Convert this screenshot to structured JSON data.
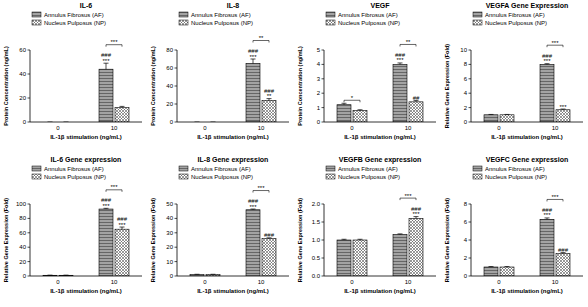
{
  "chart_data": [
    {
      "type": "bar",
      "title": "IL-6",
      "x_label": "IL-1β stimulation (ng/mL)",
      "y_label": "Protein Concentration (ng/mL)",
      "categories": [
        "0",
        "10"
      ],
      "ylim": [
        0,
        60
      ],
      "yticks": [
        0,
        20,
        40,
        60
      ],
      "legend": "top",
      "series": [
        {
          "name": "Annulus Fibrosus (AF)",
          "color": "#666666",
          "values": [
            0,
            44
          ],
          "errors": [
            0,
            5
          ],
          "annotations": [
            [],
            [
              "###",
              "***"
            ]
          ]
        },
        {
          "name": "Nucleus Pulposus (NP)",
          "color": "#555555",
          "values": [
            0,
            12
          ],
          "errors": [
            0,
            1
          ],
          "annotations": [
            [],
            []
          ]
        }
      ],
      "brackets": [
        null,
        "***"
      ]
    },
    {
      "type": "bar",
      "title": "IL-8",
      "x_label": "IL-1β stimulation (ng/mL)",
      "y_label": "Protein Concentration (ng/mL)",
      "categories": [
        "0",
        "10"
      ],
      "ylim": [
        0,
        80
      ],
      "yticks": [
        0,
        20,
        40,
        60,
        80
      ],
      "legend": "top",
      "series": [
        {
          "name": "Annulus Fibrosus (AF)",
          "color": "#666666",
          "values": [
            0,
            65
          ],
          "errors": [
            0,
            5
          ],
          "annotations": [
            [],
            [
              "###",
              "***"
            ]
          ]
        },
        {
          "name": "Nucleus Pulposus (NP)",
          "color": "#555555",
          "values": [
            0,
            24
          ],
          "errors": [
            0,
            2
          ],
          "annotations": [
            [],
            [
              "###",
              "**"
            ]
          ]
        }
      ],
      "brackets": [
        null,
        "**"
      ]
    },
    {
      "type": "bar",
      "title": "VEGF",
      "x_label": "IL-1β stimulation (ng/mL)",
      "y_label": "Protein Concentration (ng/mL)",
      "categories": [
        "0",
        "10"
      ],
      "ylim": [
        0,
        5
      ],
      "yticks": [
        0,
        1,
        2,
        3,
        4,
        5
      ],
      "legend": "top",
      "series": [
        {
          "name": "Annulus Fibrosus (AF)",
          "color": "#666666",
          "values": [
            1.2,
            4.0
          ],
          "errors": [
            0.1,
            0.1
          ],
          "annotations": [
            [],
            [
              "###",
              "***"
            ]
          ]
        },
        {
          "name": "Nucleus Pulposus (NP)",
          "color": "#555555",
          "values": [
            0.8,
            1.4
          ],
          "errors": [
            0.05,
            0.1
          ],
          "annotations": [
            [],
            [
              "##"
            ]
          ]
        }
      ],
      "brackets": [
        "*",
        "**"
      ]
    },
    {
      "type": "bar",
      "title": "VEGFA Gene Expression",
      "x_label": "IL-1β stimulation (ng/mL)",
      "y_label": "Relative Gene Expression (Fold)",
      "categories": [
        "0",
        "10"
      ],
      "ylim": [
        0,
        10
      ],
      "yticks": [
        0,
        2,
        4,
        6,
        8,
        10
      ],
      "legend": "top",
      "series": [
        {
          "name": "Annulus Fibrosus (AF)",
          "color": "#666666",
          "values": [
            1,
            8
          ],
          "errors": [
            0.05,
            0.1
          ],
          "annotations": [
            [],
            [
              "###",
              "***"
            ]
          ]
        },
        {
          "name": "Nucleus Pulposus (NP)",
          "color": "#555555",
          "values": [
            1,
            1.7
          ],
          "errors": [
            0.05,
            0.1
          ],
          "annotations": [
            [],
            [
              "***"
            ]
          ]
        }
      ],
      "brackets": [
        null,
        "***"
      ]
    },
    {
      "type": "bar",
      "title": "IL-6 Gene expression",
      "x_label": "IL-1β stimulation (ng/mL)",
      "y_label": "Relative Gene Expression (Fold)",
      "categories": [
        "0",
        "10"
      ],
      "ylim": [
        0,
        100
      ],
      "yticks": [
        0,
        20,
        40,
        60,
        80,
        100
      ],
      "legend": "top",
      "series": [
        {
          "name": "Annulus Fibrosus (AF)",
          "color": "#666666",
          "values": [
            1,
            93
          ],
          "errors": [
            0.2,
            1
          ],
          "annotations": [
            [],
            [
              "###",
              "***"
            ]
          ]
        },
        {
          "name": "Nucleus Pulposus (NP)",
          "color": "#555555",
          "values": [
            1,
            65
          ],
          "errors": [
            0.2,
            3
          ],
          "annotations": [
            [],
            [
              "###",
              "***"
            ]
          ]
        }
      ],
      "brackets": [
        null,
        "***"
      ]
    },
    {
      "type": "bar",
      "title": "IL-8 Gene expression",
      "x_label": "IL-1β stimulation (ng/mL)",
      "y_label": "Relative Gene Expression (Fold)",
      "categories": [
        "0",
        "10"
      ],
      "ylim": [
        0,
        50
      ],
      "yticks": [
        0,
        10,
        20,
        30,
        40,
        50
      ],
      "legend": "top",
      "series": [
        {
          "name": "Annulus Fibrosus (AF)",
          "color": "#666666",
          "values": [
            1,
            46
          ],
          "errors": [
            0.2,
            0.5
          ],
          "annotations": [
            [],
            [
              "###",
              "***"
            ]
          ]
        },
        {
          "name": "Nucleus Pulposus (NP)",
          "color": "#555555",
          "values": [
            1,
            26
          ],
          "errors": [
            0.2,
            0.5
          ],
          "annotations": [
            [],
            [
              "###"
            ]
          ]
        }
      ],
      "brackets": [
        null,
        "***"
      ]
    },
    {
      "type": "bar",
      "title": "VEGFB Gene expression",
      "x_label": "IL-1β stimulation (ng/mL)",
      "y_label": "Relative Gene Expression (Fold)",
      "categories": [
        "0",
        "10"
      ],
      "ylim": [
        0,
        2
      ],
      "yticks": [
        {
          "value": 0,
          "label": "0.0"
        },
        {
          "value": 0.5,
          "label": "0.5"
        },
        {
          "value": 1,
          "label": "1.0"
        },
        {
          "value": 1.5,
          "label": "1.5"
        },
        {
          "value": 2,
          "label": "2.0"
        }
      ],
      "legend": "top",
      "series": [
        {
          "name": "Annulus Fibrosus (AF)",
          "color": "#666666",
          "values": [
            1.0,
            1.15
          ],
          "errors": [
            0.02,
            0.02
          ],
          "annotations": [
            [],
            []
          ]
        },
        {
          "name": "Nucleus Pulposus (NP)",
          "color": "#555555",
          "values": [
            1.0,
            1.6
          ],
          "errors": [
            0.02,
            0.05
          ],
          "annotations": [
            [],
            [
              "###",
              "***"
            ]
          ]
        }
      ],
      "brackets": [
        null,
        "***"
      ]
    },
    {
      "type": "bar",
      "title": "VEGFC Gene expression",
      "x_label": "IL-1β stimulation (ng/mL)",
      "y_label": "Relative Gene Expression (Fold)",
      "categories": [
        "0",
        "10"
      ],
      "ylim": [
        0,
        8
      ],
      "yticks": [
        0,
        2,
        4,
        6,
        8
      ],
      "legend": "top",
      "series": [
        {
          "name": "Annulus Fibrosus (AF)",
          "color": "#666666",
          "values": [
            1,
            6.3
          ],
          "errors": [
            0.05,
            0.15
          ],
          "annotations": [
            [],
            [
              "###",
              "***"
            ]
          ]
        },
        {
          "name": "Nucleus Pulposus (NP)",
          "color": "#555555",
          "values": [
            1,
            2.5
          ],
          "errors": [
            0.05,
            0.1
          ],
          "annotations": [
            [],
            [
              "###"
            ]
          ]
        }
      ],
      "brackets": [
        null,
        "***"
      ]
    }
  ]
}
